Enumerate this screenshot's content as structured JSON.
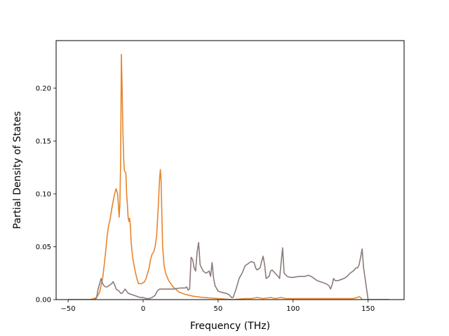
{
  "chart_data": {
    "type": "line",
    "title": "",
    "xlabel": "Frequency (THz)",
    "ylabel": "Partial Density of States",
    "xlim": [
      -58,
      174
    ],
    "ylim": [
      0,
      0.245
    ],
    "xticks": [
      -50,
      0,
      50,
      100,
      150
    ],
    "yticks": [
      0.0,
      0.05,
      0.1,
      0.15,
      0.2
    ],
    "ytick_labels": [
      "0.00",
      "0.05",
      "0.10",
      "0.15",
      "0.20"
    ],
    "grid": false,
    "legend": "none",
    "series": [
      {
        "color": "#e8852b",
        "x": [
          -50,
          -35,
          -31,
          -29,
          -27,
          -26,
          -25,
          -24,
          -23,
          -22,
          -21,
          -20,
          -19,
          -18,
          -17,
          -16.5,
          -16,
          -15.5,
          -15,
          -14.5,
          -14,
          -13.5,
          -13,
          -12.5,
          -12,
          -11.5,
          -11,
          -10.5,
          -10,
          -9.5,
          -9,
          -8.5,
          -8,
          -7.5,
          -7,
          -6,
          -5,
          -4,
          -3,
          -2,
          -1,
          0,
          1,
          2,
          3,
          4,
          5,
          6,
          7,
          8,
          9,
          10,
          10.5,
          11,
          11.5,
          12,
          12.5,
          13,
          14,
          15,
          17,
          20,
          24,
          28,
          31,
          34,
          40,
          50,
          60,
          68,
          72,
          76,
          80,
          85,
          88,
          92,
          95,
          100,
          110,
          120,
          130,
          135,
          140,
          143,
          144,
          145,
          146,
          150,
          160,
          164
        ],
        "values": [
          0.0,
          0.0,
          0.002,
          0.007,
          0.02,
          0.032,
          0.045,
          0.06,
          0.07,
          0.076,
          0.085,
          0.093,
          0.1,
          0.105,
          0.1,
          0.09,
          0.078,
          0.09,
          0.13,
          0.232,
          0.2,
          0.16,
          0.135,
          0.122,
          0.121,
          0.12,
          0.1,
          0.09,
          0.078,
          0.074,
          0.077,
          0.07,
          0.055,
          0.047,
          0.04,
          0.032,
          0.025,
          0.019,
          0.015,
          0.015,
          0.015,
          0.016,
          0.017,
          0.02,
          0.025,
          0.03,
          0.038,
          0.043,
          0.045,
          0.05,
          0.06,
          0.085,
          0.1,
          0.115,
          0.123,
          0.112,
          0.08,
          0.05,
          0.032,
          0.025,
          0.018,
          0.012,
          0.007,
          0.005,
          0.004,
          0.003,
          0.002,
          0.001,
          0.0,
          0.001,
          0.001,
          0.002,
          0.001,
          0.002,
          0.001,
          0.002,
          0.001,
          0.001,
          0.001,
          0.001,
          0.001,
          0.001,
          0.001,
          0.002,
          0.003,
          0.002,
          0.0,
          0.0,
          0.0,
          0.0
        ]
      },
      {
        "color": "#8c7b79",
        "x": [
          -50,
          -32,
          -31,
          -30,
          -29,
          -28,
          -27,
          -26,
          -25,
          -24,
          -23,
          -22,
          -21,
          -20,
          -19,
          -18,
          -17,
          -16,
          -15,
          -14,
          -13,
          -12,
          -11,
          -10,
          -8,
          -6,
          -4,
          -2,
          0,
          2,
          4,
          6,
          8,
          9,
          10,
          11,
          12,
          14,
          16,
          20,
          25,
          28,
          29,
          30,
          31,
          32,
          33,
          34,
          35,
          36,
          37,
          38,
          40,
          42,
          44,
          45,
          46,
          47,
          48,
          50,
          52,
          55,
          57,
          59,
          60,
          62,
          64,
          66,
          68,
          70,
          72,
          74,
          75,
          76,
          78,
          79,
          80,
          81,
          82,
          84,
          85,
          86,
          88,
          90,
          91,
          92,
          93,
          94,
          96,
          98,
          100,
          104,
          108,
          110,
          112,
          114,
          116,
          118,
          120,
          122,
          124,
          125,
          126,
          127,
          128,
          130,
          132,
          134,
          136,
          138,
          140,
          142,
          143,
          144,
          145,
          146,
          147,
          150,
          160,
          164
        ],
        "values": [
          0.0,
          0.0,
          0.002,
          0.01,
          0.015,
          0.02,
          0.015,
          0.013,
          0.012,
          0.012,
          0.013,
          0.014,
          0.015,
          0.017,
          0.014,
          0.01,
          0.009,
          0.008,
          0.006,
          0.006,
          0.008,
          0.01,
          0.008,
          0.006,
          0.005,
          0.004,
          0.003,
          0.002,
          0.002,
          0.001,
          0.001,
          0.002,
          0.004,
          0.007,
          0.009,
          0.01,
          0.01,
          0.01,
          0.01,
          0.01,
          0.011,
          0.011,
          0.012,
          0.009,
          0.01,
          0.04,
          0.038,
          0.03,
          0.027,
          0.045,
          0.054,
          0.033,
          0.027,
          0.025,
          0.027,
          0.022,
          0.035,
          0.02,
          0.013,
          0.008,
          0.007,
          0.006,
          0.005,
          0.002,
          0.002,
          0.01,
          0.02,
          0.025,
          0.032,
          0.034,
          0.036,
          0.035,
          0.03,
          0.028,
          0.03,
          0.036,
          0.041,
          0.033,
          0.02,
          0.022,
          0.027,
          0.028,
          0.025,
          0.022,
          0.02,
          0.035,
          0.049,
          0.025,
          0.022,
          0.021,
          0.021,
          0.022,
          0.022,
          0.023,
          0.022,
          0.02,
          0.018,
          0.017,
          0.016,
          0.015,
          0.013,
          0.01,
          0.014,
          0.02,
          0.018,
          0.018,
          0.019,
          0.02,
          0.022,
          0.025,
          0.027,
          0.03,
          0.03,
          0.033,
          0.04,
          0.048,
          0.03,
          0.0,
          0.0,
          0.0
        ]
      }
    ]
  }
}
